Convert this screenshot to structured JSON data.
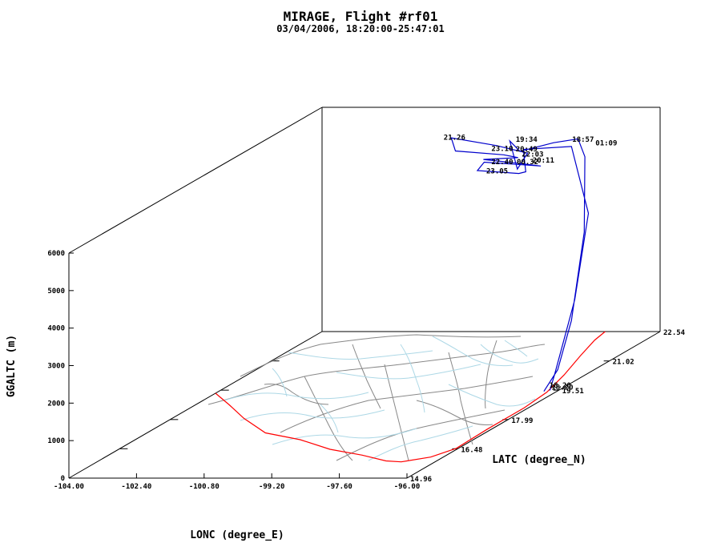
{
  "chart_data": {
    "type": "line",
    "title": "MIRAGE, Flight #rf01",
    "subtitle": "03/04/2006, 18:20:00-25:47:01",
    "xlabel": "LONC (degree_E)",
    "ylabel": "LATC (degree_N)",
    "zlabel": "GGALTC (m)",
    "x_ticks": [
      "-104.00",
      "-102.40",
      "-100.80",
      "-99.20",
      "-97.60",
      "-96.00"
    ],
    "y_ticks": [
      "14.96",
      "16.48",
      "17.99",
      "19.51",
      "21.02",
      "22.54"
    ],
    "z_ticks": [
      "0",
      "1000",
      "2000",
      "3000",
      "4000",
      "5000",
      "6000"
    ],
    "xlim": [
      -104.0,
      -96.0
    ],
    "ylim": [
      14.96,
      22.54
    ],
    "zlim": [
      0,
      6000
    ],
    "time_labels": [
      {
        "text": "19:34",
        "x": -98.2,
        "y": 21.0,
        "z": 5850
      },
      {
        "text": "18:57",
        "x": -97.1,
        "y": 21.3,
        "z": 5700
      },
      {
        "text": "01:09",
        "x": -96.55,
        "y": 21.3,
        "z": 5600
      },
      {
        "text": "21.26",
        "x": -100.3,
        "y": 21.5,
        "z": 5650
      },
      {
        "text": "20:49",
        "x": -98.2,
        "y": 21.0,
        "z": 5600
      },
      {
        "text": "20:11",
        "x": -97.8,
        "y": 21.0,
        "z": 5300
      },
      {
        "text": "23.10",
        "x": -99.25,
        "y": 21.6,
        "z": 5300
      },
      {
        "text": "22:03",
        "x": -98.45,
        "y": 21.5,
        "z": 5200
      },
      {
        "text": "22.40",
        "x": -99.25,
        "y": 21.6,
        "z": 4950
      },
      {
        "text": "00.32",
        "x": -98.65,
        "y": 21.6,
        "z": 4950
      },
      {
        "text": "23.05",
        "x": -99.45,
        "y": 21.7,
        "z": 4650
      },
      {
        "text": "18.20",
        "x": -96.1,
        "y": 19.35,
        "z": 150
      },
      {
        "text": "18.20",
        "x": -96.05,
        "y": 19.35,
        "z": 100
      }
    ],
    "flight_track_series": [
      {
        "x": -96.15,
        "y": 19.25,
        "z": 100
      },
      {
        "x": -96.1,
        "y": 19.6,
        "z": 500
      },
      {
        "x": -96.25,
        "y": 20.2,
        "z": 1500
      },
      {
        "x": -96.5,
        "y": 20.9,
        "z": 3500
      },
      {
        "x": -96.8,
        "y": 21.3,
        "z": 5300
      },
      {
        "x": -97.0,
        "y": 21.35,
        "z": 5750
      },
      {
        "x": -97.5,
        "y": 21.25,
        "z": 5700
      },
      {
        "x": -98.1,
        "y": 21.0,
        "z": 5600
      },
      {
        "x": -98.3,
        "y": 20.95,
        "z": 5900
      },
      {
        "x": -98.2,
        "y": 21.05,
        "z": 5100
      },
      {
        "x": -98.0,
        "y": 21.1,
        "z": 5500
      },
      {
        "x": -98.9,
        "y": 21.3,
        "z": 5600
      },
      {
        "x": -100.2,
        "y": 21.6,
        "z": 5650
      },
      {
        "x": -100.1,
        "y": 21.6,
        "z": 5300
      },
      {
        "x": -98.8,
        "y": 21.4,
        "z": 5300
      },
      {
        "x": -98.5,
        "y": 21.45,
        "z": 5200
      },
      {
        "x": -99.4,
        "y": 21.55,
        "z": 5100
      },
      {
        "x": -98.6,
        "y": 21.55,
        "z": 5000
      },
      {
        "x": -98.0,
        "y": 21.5,
        "z": 4950
      },
      {
        "x": -99.5,
        "y": 21.7,
        "z": 4950
      },
      {
        "x": -99.7,
        "y": 21.75,
        "z": 4700
      },
      {
        "x": -98.6,
        "y": 21.6,
        "z": 4700
      },
      {
        "x": -98.2,
        "y": 21.3,
        "z": 4900
      },
      {
        "x": -98.1,
        "y": 21.1,
        "z": 5600
      },
      {
        "x": -97.0,
        "y": 21.15,
        "z": 5650
      },
      {
        "x": -96.4,
        "y": 20.9,
        "z": 4000
      },
      {
        "x": -96.25,
        "y": 20.3,
        "z": 2000
      },
      {
        "x": -96.1,
        "y": 19.5,
        "z": 400
      },
      {
        "x": -96.05,
        "y": 19.3,
        "z": 100
      }
    ],
    "coastline_series": [
      {
        "x": -104.0,
        "y": 19.35
      },
      {
        "x": -103.2,
        "y": 18.75
      },
      {
        "x": -102.3,
        "y": 18.05
      },
      {
        "x": -101.2,
        "y": 17.3
      },
      {
        "x": -100.1,
        "y": 16.95
      },
      {
        "x": -99.0,
        "y": 16.45
      },
      {
        "x": -98.0,
        "y": 16.15
      },
      {
        "x": -97.2,
        "y": 15.85
      },
      {
        "x": -96.8,
        "y": 15.8
      },
      {
        "x": -96.3,
        "y": 16.05
      },
      {
        "x": -96.05,
        "y": 16.5
      },
      {
        "x": -96.1,
        "y": 17.5
      },
      {
        "x": -96.1,
        "y": 18.6
      },
      {
        "x": -96.2,
        "y": 19.4
      },
      {
        "x": -96.5,
        "y": 20.3
      },
      {
        "x": -96.9,
        "y": 21.3
      },
      {
        "x": -97.2,
        "y": 22.1
      },
      {
        "x": -97.3,
        "y": 22.54
      }
    ],
    "rivers_color": "#add8e6",
    "boundaries_color": "#888888",
    "coast_color": "#ff0000",
    "track_color": "#0000cc",
    "grid": false
  }
}
